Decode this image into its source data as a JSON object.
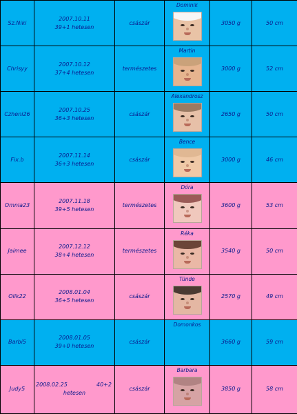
{
  "colors": {
    "blue_row": "#00b0f0",
    "pink_row": "#ff99cc",
    "text": "#0b1a8c"
  },
  "rows": [
    {
      "color": "#00b0f0",
      "nick": "Sz.Niki",
      "date": "2007.10.11",
      "week": "39+1 hetesen",
      "delivery": "császár",
      "baby": "Dominik",
      "has_photo": true,
      "skin": "#e9c3a6",
      "cap": "#f6f6f6",
      "weight": "3050 g",
      "length": "50 cm"
    },
    {
      "color": "#00b0f0",
      "nick": "Chrisyy",
      "date": "2007.10.12",
      "week": "37+4 hetesen",
      "delivery": "természetes",
      "baby": "Martin",
      "has_photo": true,
      "skin": "#e6b48f",
      "cap": "#caa27a",
      "weight": "3000 g",
      "length": "52 cm"
    },
    {
      "color": "#00b0f0",
      "nick": "Czheni26",
      "date": "2007.10.25",
      "week": "36+3 hetesen",
      "delivery": "császár",
      "baby": "Alexandrosz",
      "has_photo": true,
      "skin": "#e7c0a8",
      "cap": "#9a7a63",
      "weight": "2650 g",
      "length": "50 cm"
    },
    {
      "color": "#00b0f0",
      "nick": "Fix.b",
      "date": "2007.11.14",
      "week": "36+3 hetesen",
      "delivery": "császár",
      "baby": "Bence",
      "has_photo": true,
      "skin": "#efc9a7",
      "cap": "#e0b893",
      "weight": "3000 g",
      "length": "46 cm"
    },
    {
      "color": "#ff99cc",
      "nick": "Omnia23",
      "date": "2007.11.18",
      "week": "39+5 hetesen",
      "delivery": "természetes",
      "baby": "Dóra",
      "has_photo": true,
      "skin": "#f0c8bd",
      "cap": "#9b5a57",
      "weight": "3600 g",
      "length": "53 cm"
    },
    {
      "color": "#ff99cc",
      "nick": "Jaimee",
      "date": "2007.12.12",
      "week": "38+4 hetesen",
      "delivery": "természetes",
      "baby": "Réka",
      "has_photo": true,
      "skin": "#eab8a6",
      "cap": "#6b4538",
      "weight": "3540 g",
      "length": "50 cm"
    },
    {
      "color": "#ff99cc",
      "nick": "Olik22",
      "date": "2008.01.04",
      "week": "36+5 hetesen",
      "delivery": "császár",
      "baby": "Tünde",
      "has_photo": true,
      "skin": "#e4b7a3",
      "cap": "#4a3a32",
      "weight": "2570 g",
      "length": "49 cm"
    },
    {
      "color": "#00b0f0",
      "nick": "Barbi5",
      "date": "2008.01.05",
      "week": "39+0 hetesen",
      "delivery": "császár",
      "baby": "Domonkos",
      "has_photo": false,
      "skin": "",
      "cap": "",
      "weight": "3660 g",
      "length": "59 cm"
    },
    {
      "color": "#ff99cc",
      "nick": "Judy5",
      "date": "2008.02.25",
      "week": "40+2",
      "week_suffix": "hetesen",
      "delivery": "császár",
      "baby": "Barbara",
      "has_photo": true,
      "skin": "#d6a3a4",
      "cap": "#b18383",
      "weight": "3850 g",
      "length": "58 cm"
    }
  ]
}
